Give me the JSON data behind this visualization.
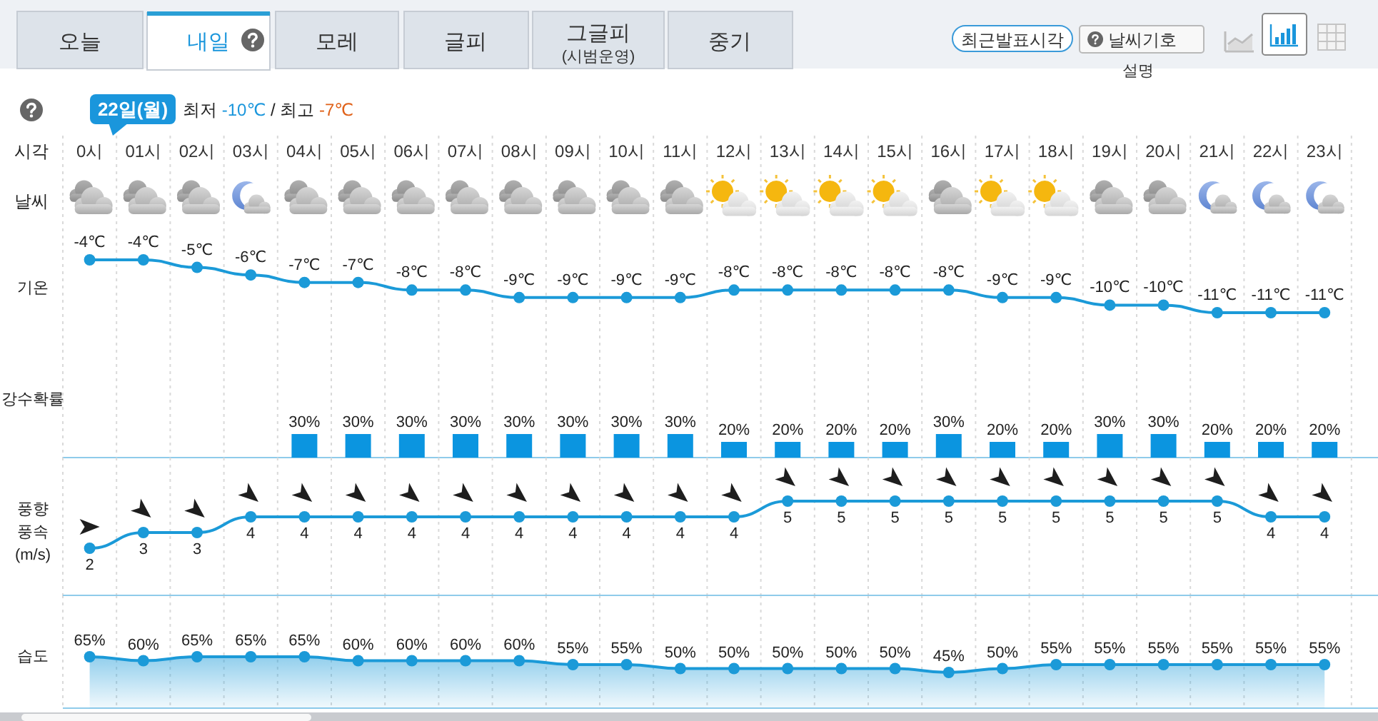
{
  "chart_data": [
    {
      "type": "other",
      "annotations": [
        "오늘",
        "내일",
        "모레",
        "글피",
        "그글피",
        "(시범운영)",
        "중기",
        "최근발표시각",
        "날씨기호",
        "설명"
      ]
    },
    {
      "type": "line",
      "title": "22일(월)",
      "subtitle": "최저 -10℃ / 최고 -7℃",
      "xlabel": "시각",
      "ylabel": "기온",
      "annotations": [
        "날씨"
      ],
      "categories": [
        "0시",
        "01시",
        "02시",
        "03시",
        "04시",
        "05시",
        "06시",
        "07시",
        "08시",
        "09시",
        "10시",
        "11시",
        "12시",
        "13시",
        "14시",
        "15시",
        "16시",
        "17시",
        "18시",
        "19시",
        "20시",
        "21시",
        "22시",
        "23시"
      ],
      "series": [
        {
          "color": "#1b9ad8",
          "values": [
            -4,
            -4,
            -5,
            -6,
            -7,
            -7,
            -8,
            -8,
            -9,
            -9,
            -9,
            -9,
            -8,
            -8,
            -8,
            -8,
            -8,
            -9,
            -9,
            -10,
            -10,
            -11,
            -11,
            -11
          ],
          "value_labels": [
            "-4℃",
            "-4℃",
            "-5℃",
            "-6℃",
            "-7℃",
            "-7℃",
            "-8℃",
            "-8℃",
            "-9℃",
            "-9℃",
            "-9℃",
            "-9℃",
            "-8℃",
            "-8℃",
            "-8℃",
            "-8℃",
            "-8℃",
            "-9℃",
            "-9℃",
            "-10℃",
            "-10℃",
            "-11℃",
            "-11℃",
            "-11℃"
          ]
        }
      ],
      "marker": "circle",
      "tick_labels": "x",
      "grid": "x"
    },
    {
      "type": "bar",
      "ylabel": "강수확률",
      "categories": [
        null,
        null,
        null,
        null,
        null,
        null,
        null,
        null,
        null,
        null,
        null,
        null,
        null,
        null,
        null,
        null,
        null,
        null,
        null,
        null,
        null,
        null,
        null,
        null
      ],
      "series": [
        {
          "color": "#0b95e0",
          "values": [
            null,
            null,
            null,
            null,
            30,
            30,
            30,
            30,
            30,
            30,
            30,
            30,
            20,
            20,
            20,
            20,
            30,
            20,
            20,
            30,
            30,
            20,
            20,
            20
          ],
          "value_labels": [
            null,
            null,
            null,
            null,
            "30%",
            "30%",
            "30%",
            "30%",
            "30%",
            "30%",
            "30%",
            "30%",
            "20%",
            "20%",
            "20%",
            "20%",
            "30%",
            "20%",
            "20%",
            "30%",
            "30%",
            "20%",
            "20%",
            "20%"
          ]
        }
      ],
      "tick_labels": false,
      "grid": "x"
    },
    {
      "type": "line",
      "ylabel": "풍향\n풍속\n(m/s)",
      "categories": [
        null,
        null,
        null,
        null,
        null,
        null,
        null,
        null,
        null,
        null,
        null,
        null,
        null,
        null,
        null,
        null,
        null,
        null,
        null,
        null,
        null,
        null,
        null,
        null
      ],
      "series": [
        {
          "color": "#1b9ad8",
          "values": [
            2,
            3,
            3,
            4,
            4,
            4,
            4,
            4,
            4,
            4,
            4,
            4,
            4,
            5,
            5,
            5,
            5,
            5,
            5,
            5,
            5,
            5,
            4,
            4
          ]
        }
      ],
      "data_labels": true,
      "marker": "circle",
      "tick_labels": false,
      "grid": "x"
    },
    {
      "type": "area",
      "ylabel": "습도",
      "categories": [
        null,
        null,
        null,
        null,
        null,
        null,
        null,
        null,
        null,
        null,
        null,
        null,
        null,
        null,
        null,
        null,
        null,
        null,
        null,
        null,
        null,
        null,
        null,
        null
      ],
      "series": [
        {
          "color": "#1b9ad8",
          "values": [
            65,
            60,
            65,
            65,
            65,
            60,
            60,
            60,
            60,
            55,
            55,
            50,
            50,
            50,
            50,
            50,
            45,
            50,
            55,
            55,
            55,
            55,
            55,
            55
          ],
          "value_labels": [
            "65%",
            "60%",
            "65%",
            "65%",
            "65%",
            "60%",
            "60%",
            "60%",
            "60%",
            "55%",
            "55%",
            "50%",
            "50%",
            "50%",
            "50%",
            "50%",
            "45%",
            "50%",
            "55%",
            "55%",
            "55%",
            "55%",
            "55%",
            "55%"
          ]
        }
      ],
      "marker": "circle",
      "tick_labels": false,
      "grid": "x"
    }
  ]
}
